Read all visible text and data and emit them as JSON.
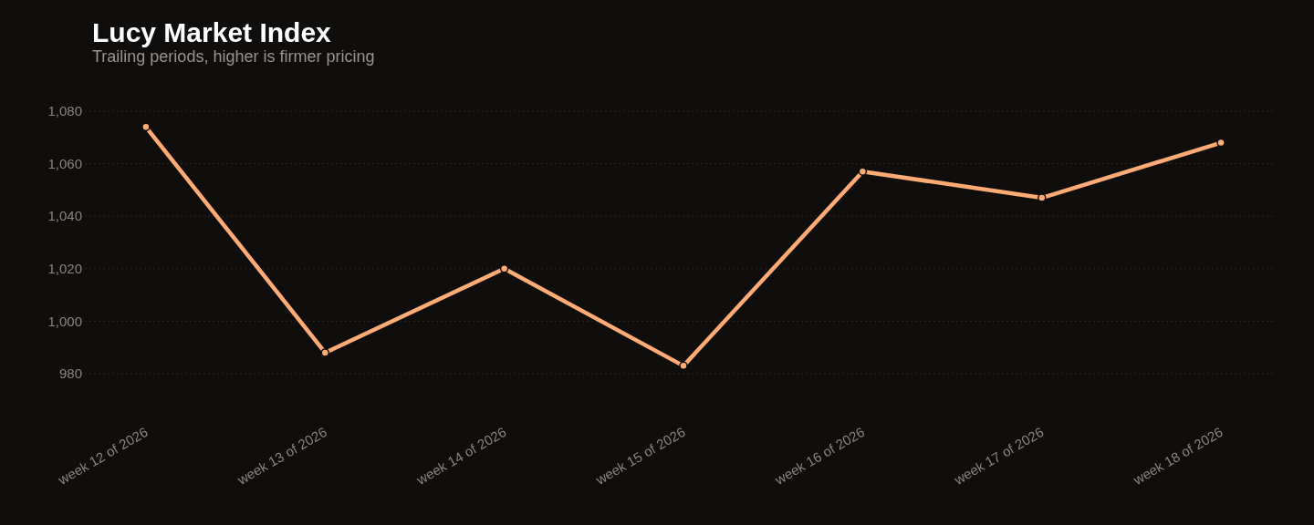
{
  "chart_data": {
    "type": "line",
    "title": "Lucy Market Index",
    "subtitle": "Trailing periods, higher is firmer pricing",
    "categories": [
      "week 12 of 2026",
      "week 13 of 2026",
      "week 14 of 2026",
      "week 15 of 2026",
      "week 16 of 2026",
      "week 17 of 2026",
      "week 18 of 2026"
    ],
    "series": [
      {
        "color": "#ffab76",
        "values": [
          1074,
          988,
          1020,
          983,
          1057,
          1047,
          1068
        ]
      }
    ],
    "ylim": [
      980,
      1080
    ],
    "yticks": [
      {
        "value": 980,
        "label": "980"
      },
      {
        "value": 1000,
        "label": "1,000"
      },
      {
        "value": 1020,
        "label": "1,020"
      },
      {
        "value": 1040,
        "label": "1,040"
      },
      {
        "value": 1060,
        "label": "1,060"
      },
      {
        "value": 1080,
        "label": "1,080"
      }
    ],
    "grid": "y",
    "marker": "circle",
    "line_style": "solid"
  }
}
